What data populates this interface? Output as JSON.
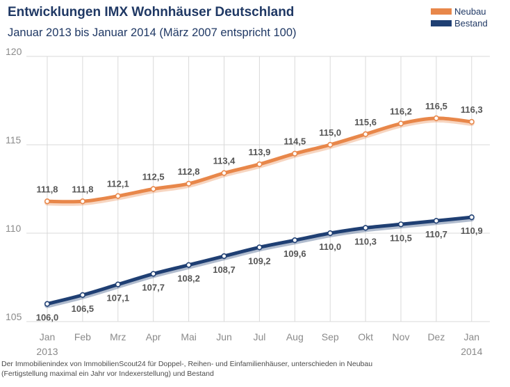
{
  "title": "Entwicklungen IMX Wohnhäuser Deutschland",
  "subtitle": "Januar 2013 bis Januar 2014 (März 2007 entspricht 100)",
  "footnote": {
    "line1": "Der Immobilienindex von ImmobilienScout24 für Doppel-, Reihen- und Einfamilienhäuser, unterschieden in Neubau",
    "line2": "(Fertigstellung maximal ein Jahr vor Indexerstellung) und Bestand"
  },
  "colors": {
    "neubau": "#e8874a",
    "bestand": "#1f3f73",
    "grid": "#d9d9d9",
    "title": "#1f3864"
  },
  "chart_data": {
    "type": "line",
    "title": "Entwicklungen IMX Wohnhäuser Deutschland",
    "subtitle": "Januar 2013 bis Januar 2014 (März 2007 entspricht 100)",
    "categories": [
      "Jan",
      "Feb",
      "Mrz",
      "Apr",
      "Mai",
      "Jun",
      "Jul",
      "Aug",
      "Sep",
      "Okt",
      "Nov",
      "Dez",
      "Jan"
    ],
    "category_sublabels": {
      "first": "2013",
      "last": "2014"
    },
    "ylim": [
      105,
      120
    ],
    "yticks": [
      105,
      110,
      115,
      120
    ],
    "grid": true,
    "legend_position": "top-right",
    "series": [
      {
        "name": "Neubau",
        "color": "#e8874a",
        "values": [
          111.8,
          111.8,
          112.1,
          112.5,
          112.8,
          113.4,
          113.9,
          114.5,
          115.0,
          115.6,
          116.2,
          116.5,
          116.3
        ],
        "labels": [
          "111,8",
          "111,8",
          "112,1",
          "112,5",
          "112,8",
          "113,4",
          "113,9",
          "114,5",
          "115,0",
          "115,6",
          "116,2",
          "116,5",
          "116,3"
        ]
      },
      {
        "name": "Bestand",
        "color": "#1f3f73",
        "values": [
          106.0,
          106.5,
          107.1,
          107.7,
          108.2,
          108.7,
          109.2,
          109.6,
          110.0,
          110.3,
          110.5,
          110.7,
          110.9
        ],
        "labels": [
          "106,0",
          "106,5",
          "107,1",
          "107,7",
          "108,2",
          "108,7",
          "109,2",
          "109,6",
          "110,0",
          "110,3",
          "110,5",
          "110,7",
          "110,9"
        ]
      }
    ]
  }
}
